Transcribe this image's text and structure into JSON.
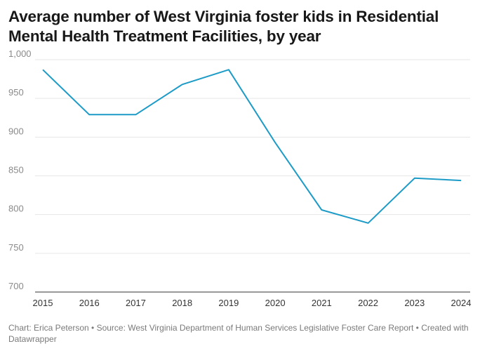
{
  "chart_data": {
    "type": "line",
    "title": "Average number of West Virginia foster kids in Residential Mental Health Treatment Facilities, by year",
    "x": [
      "2015",
      "2016",
      "2017",
      "2018",
      "2019",
      "2020",
      "2021",
      "2022",
      "2023",
      "2024"
    ],
    "series": [
      {
        "values": [
          987,
          929,
          929,
          968,
          987,
          893,
          806,
          789,
          847,
          844
        ]
      }
    ],
    "ylim": [
      700,
      1000
    ],
    "yticks": [
      "1,000",
      "950",
      "900",
      "850",
      "800",
      "750",
      "700"
    ],
    "ytick_values": [
      1000,
      950,
      900,
      850,
      800,
      750,
      700
    ],
    "grid": true,
    "line_color": "#1d9bc7"
  },
  "footer": {
    "text": "Chart: Erica Peterson • Source: West Virginia Department of Human Services Legislative Foster Care Report • Created with Datawrapper"
  }
}
